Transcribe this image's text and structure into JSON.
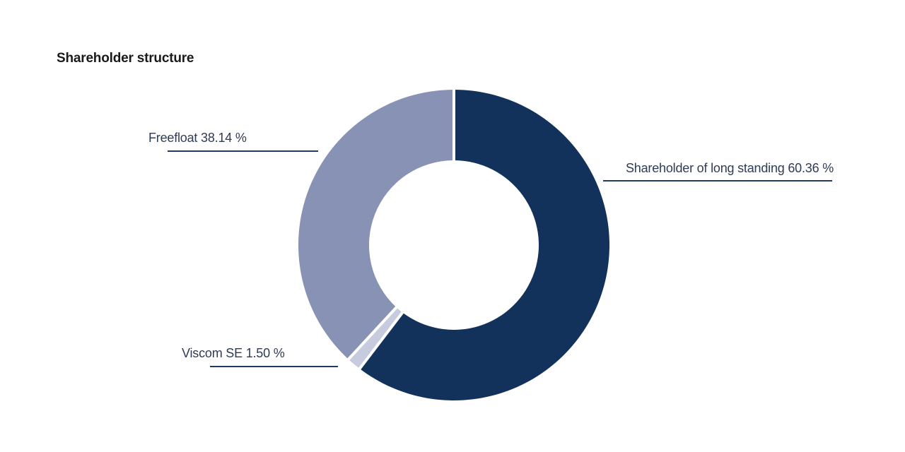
{
  "chart_data": {
    "type": "pie",
    "variant": "donut",
    "title": "Shareholder structure",
    "direction": "clockwise",
    "start_angle_deg": 0,
    "hole_ratio": 0.545,
    "legend_position": "none",
    "background_color": "#ffffff",
    "divider_color": "#ffffff",
    "segments": [
      {
        "name": "Shareholder of long standing",
        "value": 60.36,
        "label": "Shareholder of long standing 60.36 %",
        "color": "#13325b"
      },
      {
        "name": "Viscom SE",
        "value": 1.5,
        "label": "Viscom SE 1.50 %",
        "color": "#c6cbde"
      },
      {
        "name": "Freefloat",
        "value": 38.14,
        "label": "Freefloat 38.14 %",
        "color": "#8792b4"
      }
    ]
  },
  "styles": {
    "title_color": "#1a1a1a",
    "label_color": "#2e3c55",
    "leader_line_color": "#1c3c63"
  }
}
